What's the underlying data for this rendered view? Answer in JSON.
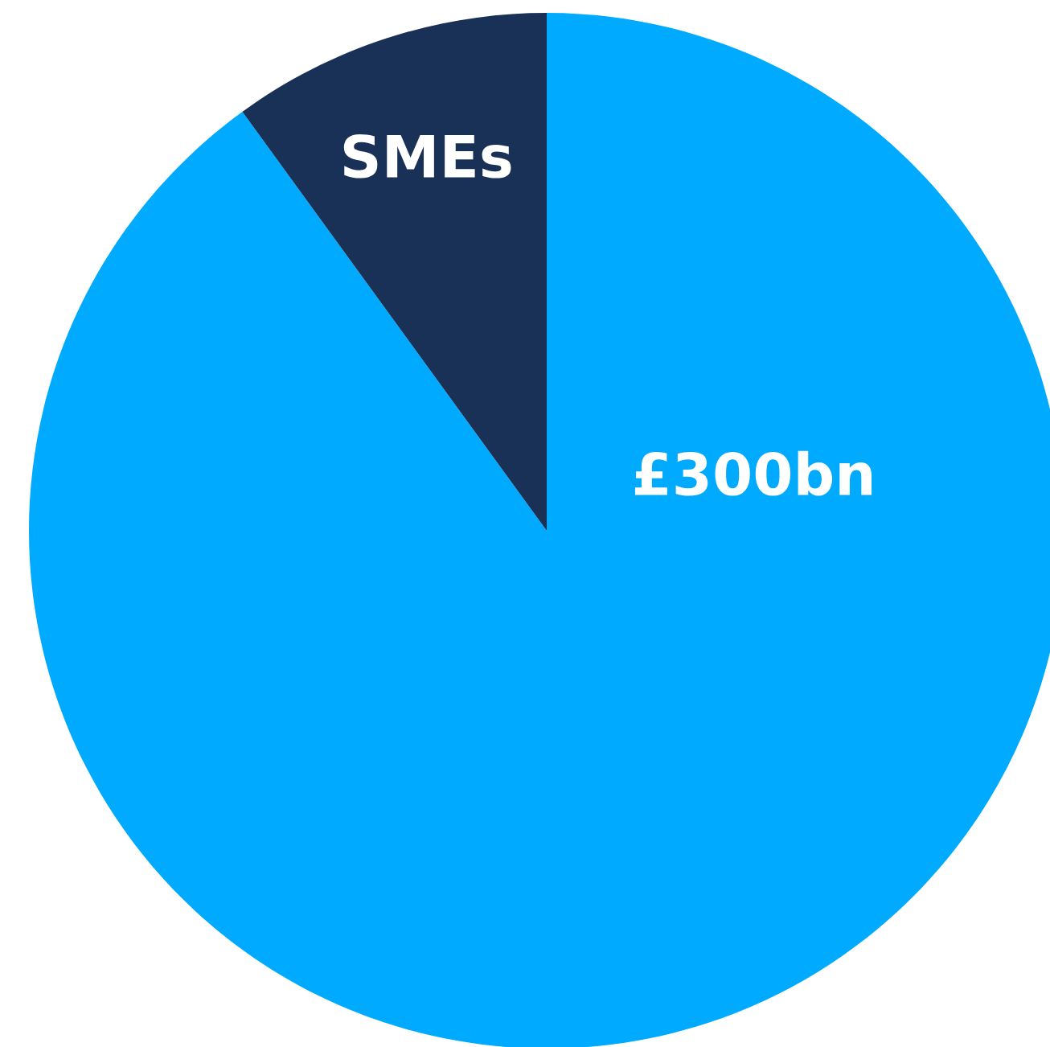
{
  "chart_data": {
    "type": "pie",
    "categories": [
      "£300bn",
      "SMEs"
    ],
    "values": [
      90,
      10
    ],
    "colors": [
      "#00aaff",
      "#1a3157"
    ]
  }
}
